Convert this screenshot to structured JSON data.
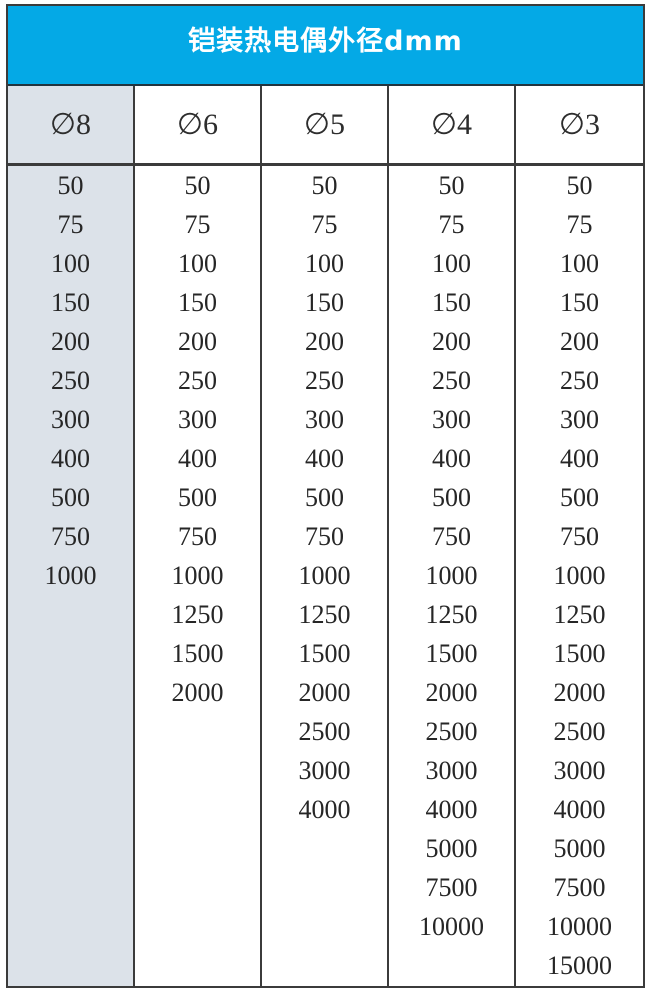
{
  "table": {
    "title": "铠装热电偶外径dmm",
    "columns": [
      {
        "header": "∅8",
        "values": [
          "50",
          "75",
          "100",
          "150",
          "200",
          "250",
          "300",
          "400",
          "500",
          "750",
          "1000"
        ]
      },
      {
        "header": "∅6",
        "values": [
          "50",
          "75",
          "100",
          "150",
          "200",
          "250",
          "300",
          "400",
          "500",
          "750",
          "1000",
          "1250",
          "1500",
          "2000"
        ]
      },
      {
        "header": "∅5",
        "values": [
          "50",
          "75",
          "100",
          "150",
          "200",
          "250",
          "300",
          "400",
          "500",
          "750",
          "1000",
          "1250",
          "1500",
          "2000",
          "2500",
          "3000",
          "4000"
        ]
      },
      {
        "header": "∅4",
        "values": [
          "50",
          "75",
          "100",
          "150",
          "200",
          "250",
          "300",
          "400",
          "500",
          "750",
          "1000",
          "1250",
          "1500",
          "2000",
          "2500",
          "3000",
          "4000",
          "5000",
          "7500",
          "10000"
        ]
      },
      {
        "header": "∅3",
        "values": [
          "50",
          "75",
          "100",
          "150",
          "200",
          "250",
          "300",
          "400",
          "500",
          "750",
          "1000",
          "1250",
          "1500",
          "2000",
          "2500",
          "3000",
          "4000",
          "5000",
          "7500",
          "10000",
          "15000"
        ]
      }
    ]
  },
  "colors": {
    "header_bg": "#04a9e6",
    "header_text": "#ffffff",
    "first_column_bg": "#dce2e9",
    "border": "#3b3b3b",
    "value_text": "#262626"
  }
}
